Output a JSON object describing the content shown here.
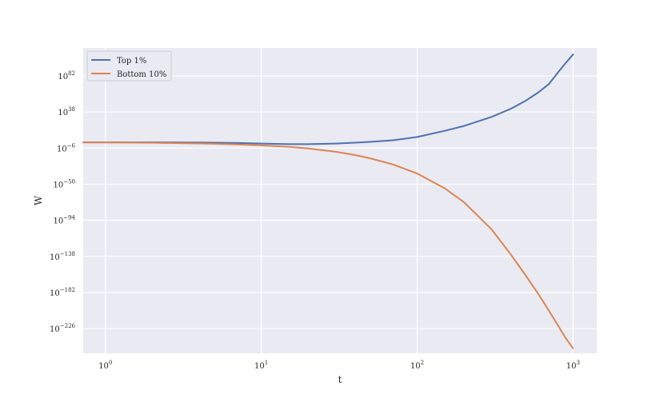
{
  "chart_data": {
    "type": "line",
    "title": "",
    "xlabel": "t",
    "ylabel": "W",
    "xscale": "log",
    "yscale": "log",
    "xlim": [
      0.72,
      1420
    ],
    "ylim_exp": [
      -256,
      116
    ],
    "xticks": [
      {
        "value": 1,
        "base": "10",
        "exp": "0"
      },
      {
        "value": 10,
        "base": "10",
        "exp": "1"
      },
      {
        "value": 100,
        "base": "10",
        "exp": "2"
      },
      {
        "value": 1000,
        "base": "10",
        "exp": "3"
      }
    ],
    "yticks": [
      {
        "exp_value": 82,
        "base": "10",
        "exp": "82"
      },
      {
        "exp_value": 38,
        "base": "10",
        "exp": "38"
      },
      {
        "exp_value": -6,
        "base": "10",
        "exp": "−6"
      },
      {
        "exp_value": -50,
        "base": "10",
        "exp": "−50"
      },
      {
        "exp_value": -94,
        "base": "10",
        "exp": "−94"
      },
      {
        "exp_value": -138,
        "base": "10",
        "exp": "−138"
      },
      {
        "exp_value": -182,
        "base": "10",
        "exp": "−182"
      },
      {
        "exp_value": -226,
        "base": "10",
        "exp": "−226"
      }
    ],
    "grid": true,
    "legend_position": "top-left",
    "series": [
      {
        "name": "Top 1%",
        "color": "#4c72b0",
        "x": [
          0.72,
          1,
          2,
          3,
          5,
          7,
          10,
          15,
          20,
          30,
          40,
          50,
          70,
          100,
          150,
          200,
          300,
          400,
          500,
          600,
          700,
          800,
          900,
          1000
        ],
        "y_log10": [
          1,
          1,
          1,
          0.9,
          0.6,
          0.2,
          -0.5,
          -1.2,
          -1.2,
          -0.5,
          0.6,
          1.6,
          3.5,
          7.5,
          15,
          21,
          32,
          42,
          52,
          62,
          72,
          86,
          98,
          108
        ]
      },
      {
        "name": "Bottom 10%",
        "color": "#dd8452",
        "x": [
          0.72,
          1,
          2,
          3,
          5,
          7,
          10,
          15,
          20,
          30,
          40,
          50,
          70,
          100,
          150,
          200,
          300,
          400,
          500,
          600,
          700,
          800,
          900,
          1000
        ],
        "y_log10": [
          1,
          1,
          0.5,
          0,
          -0.8,
          -1.5,
          -2.7,
          -4.5,
          -6.5,
          -10.5,
          -14.5,
          -18.5,
          -26,
          -37,
          -55,
          -72,
          -105,
          -136,
          -162,
          -184,
          -204,
          -222,
          -238,
          -250
        ]
      }
    ]
  }
}
